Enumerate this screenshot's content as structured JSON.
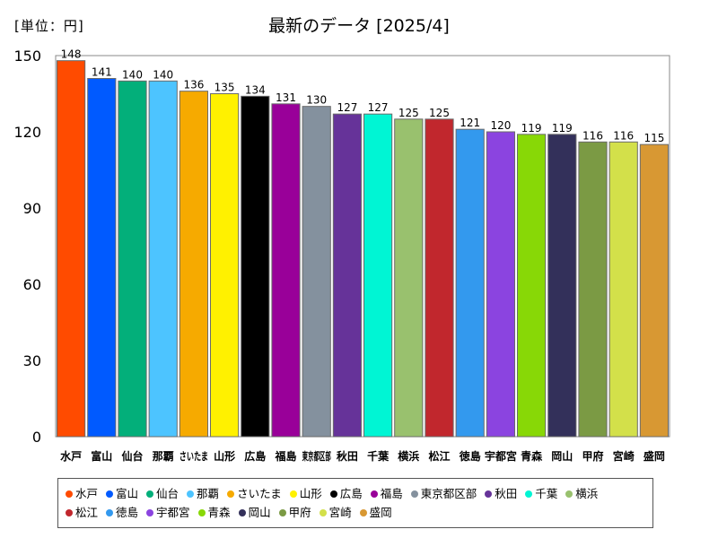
{
  "unit_label": "[単位：円]",
  "chart_data": {
    "type": "bar",
    "title": "最新のデータ [2025/4]",
    "xlabel": "",
    "ylabel": "",
    "ylim": [
      0,
      150
    ],
    "yticks": [
      0,
      30,
      60,
      90,
      120,
      150
    ],
    "grid": false,
    "legend_position": "bottom",
    "categories": [
      "水戸",
      "富山",
      "仙台",
      "那覇",
      "さいたま",
      "山形",
      "広島",
      "福島",
      "東京都区部",
      "秋田",
      "千葉",
      "横浜",
      "松江",
      "徳島",
      "宇都宮",
      "青森",
      "岡山",
      "甲府",
      "宮崎",
      "盛岡"
    ],
    "values": [
      148,
      141,
      140,
      140,
      136,
      135,
      134,
      131,
      130,
      127,
      127,
      125,
      125,
      121,
      120,
      119,
      119,
      116,
      116,
      115
    ],
    "colors": [
      "#ff4b00",
      "#005aff",
      "#03af7a",
      "#4dc4ff",
      "#f6aa00",
      "#fff100",
      "#000000",
      "#990099",
      "#84919e",
      "#663399",
      "#00f5d4",
      "#99c16e",
      "#c1272d",
      "#3399ee",
      "#8b44e0",
      "#88d806",
      "#33305a",
      "#7b9a44",
      "#d3e04a",
      "#d89833"
    ]
  }
}
